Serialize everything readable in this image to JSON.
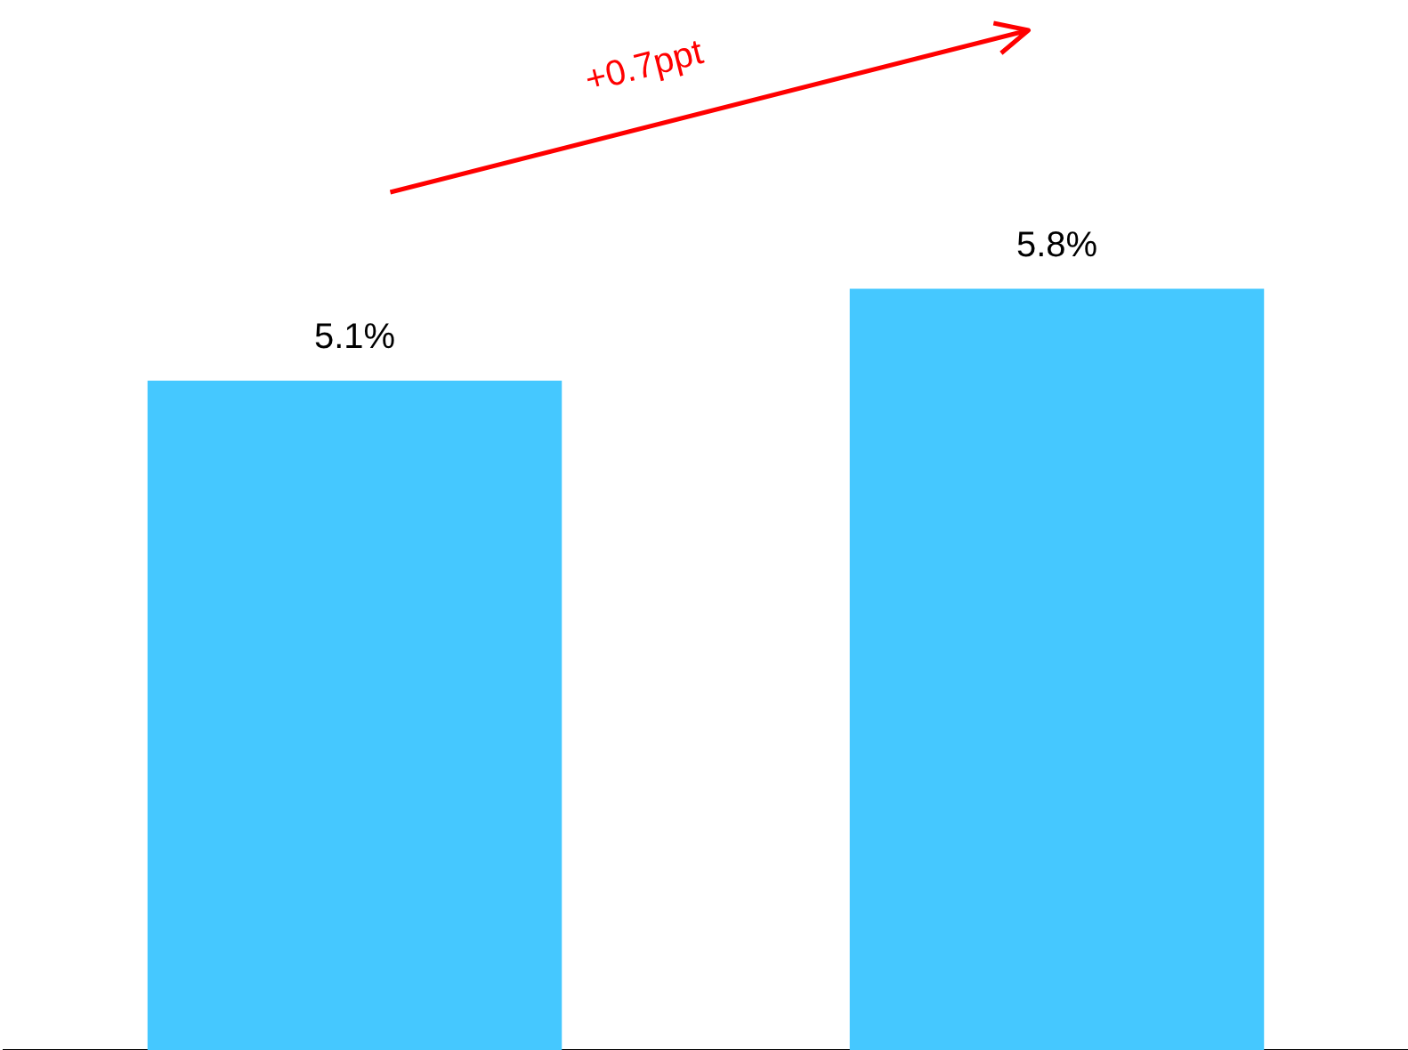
{
  "chart_data": {
    "type": "bar",
    "categories": [
      null,
      null
    ],
    "values": [
      5.1,
      5.8
    ],
    "value_labels": [
      "5.1%",
      "5.8%"
    ],
    "color": "#45c8ff",
    "annotations": [
      "+0.7ppt"
    ],
    "grid": false,
    "legend": false
  }
}
